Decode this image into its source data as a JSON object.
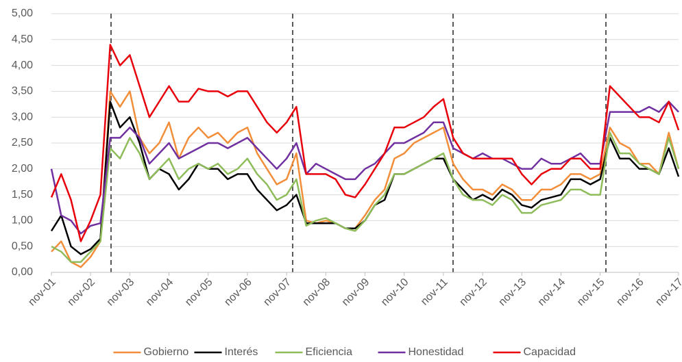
{
  "chart_data": {
    "type": "line",
    "categories": [
      "nov-01",
      null,
      null,
      null,
      "nov-02",
      null,
      null,
      null,
      "nov-03",
      null,
      null,
      null,
      "nov-04",
      null,
      null,
      null,
      "nov-05",
      null,
      null,
      null,
      "nov-06",
      null,
      null,
      null,
      "nov-07",
      null,
      null,
      null,
      "nov-08",
      null,
      null,
      null,
      "nov-09",
      null,
      null,
      null,
      "nov-10",
      null,
      null,
      null,
      "nov-11",
      null,
      null,
      null,
      "nov-12",
      null,
      null,
      null,
      "nov-13",
      null,
      null,
      null,
      "nov-14",
      null,
      null,
      null,
      "nov-15",
      null,
      null,
      null,
      "nov-16",
      null,
      null,
      null,
      "nov-17"
    ],
    "series": [
      {
        "name": "Gobierno",
        "color": "#f28e3a",
        "values": [
          0.4,
          0.6,
          0.2,
          0.1,
          0.3,
          0.6,
          3.5,
          3.2,
          3.5,
          2.6,
          2.3,
          2.5,
          2.9,
          2.2,
          2.6,
          2.8,
          2.6,
          2.7,
          2.5,
          2.7,
          2.8,
          2.3,
          2.0,
          1.7,
          1.8,
          2.3,
          1.0,
          0.95,
          1.0,
          0.95,
          0.85,
          0.85,
          1.1,
          1.4,
          1.6,
          2.2,
          2.3,
          2.5,
          2.6,
          2.7,
          2.8,
          2.1,
          1.8,
          1.6,
          1.6,
          1.5,
          1.7,
          1.6,
          1.4,
          1.4,
          1.6,
          1.6,
          1.7,
          1.9,
          1.9,
          1.8,
          1.9,
          2.8,
          2.5,
          2.4,
          2.1,
          2.1,
          1.9,
          2.7,
          2.0
        ]
      },
      {
        "name": "Interés",
        "color": "#000000",
        "values": [
          0.8,
          1.1,
          0.5,
          0.35,
          0.45,
          0.65,
          3.3,
          2.8,
          3.0,
          2.5,
          1.8,
          2.0,
          1.9,
          1.6,
          1.8,
          2.1,
          2.0,
          2.0,
          1.8,
          1.9,
          1.9,
          1.6,
          1.4,
          1.2,
          1.3,
          1.5,
          0.95,
          0.95,
          0.95,
          0.95,
          0.85,
          0.85,
          1.0,
          1.3,
          1.4,
          1.9,
          1.9,
          2.0,
          2.1,
          2.2,
          2.2,
          1.8,
          1.6,
          1.4,
          1.5,
          1.4,
          1.6,
          1.5,
          1.3,
          1.25,
          1.4,
          1.45,
          1.5,
          1.8,
          1.8,
          1.7,
          1.8,
          2.6,
          2.2,
          2.2,
          2.0,
          2.0,
          1.9,
          2.4,
          1.85
        ]
      },
      {
        "name": "Eficiencia",
        "color": "#8fbc5a",
        "values": [
          0.5,
          0.4,
          0.2,
          0.2,
          0.4,
          0.6,
          2.4,
          2.2,
          2.6,
          2.3,
          1.8,
          2.0,
          2.2,
          1.8,
          2.0,
          2.1,
          2.0,
          2.1,
          1.9,
          2.0,
          2.2,
          1.9,
          1.7,
          1.4,
          1.5,
          1.8,
          0.9,
          1.0,
          1.05,
          0.95,
          0.85,
          0.8,
          1.0,
          1.3,
          1.5,
          1.9,
          1.9,
          2.0,
          2.1,
          2.2,
          2.3,
          1.8,
          1.5,
          1.4,
          1.4,
          1.3,
          1.5,
          1.4,
          1.15,
          1.15,
          1.3,
          1.35,
          1.4,
          1.6,
          1.6,
          1.5,
          1.5,
          2.7,
          2.3,
          2.3,
          2.1,
          2.0,
          1.9,
          2.6,
          2.0
        ]
      },
      {
        "name": "Honestidad",
        "color": "#7030a0",
        "values": [
          2.0,
          1.1,
          1.0,
          0.75,
          0.9,
          0.95,
          2.6,
          2.6,
          2.8,
          2.6,
          2.1,
          2.3,
          2.5,
          2.2,
          2.3,
          2.4,
          2.5,
          2.5,
          2.4,
          2.5,
          2.6,
          2.4,
          2.2,
          2.0,
          2.2,
          2.5,
          1.9,
          2.1,
          2.0,
          1.9,
          1.8,
          1.8,
          2.0,
          2.1,
          2.3,
          2.5,
          2.5,
          2.6,
          2.7,
          2.9,
          2.9,
          2.4,
          2.3,
          2.2,
          2.3,
          2.2,
          2.2,
          2.1,
          2.0,
          2.0,
          2.2,
          2.1,
          2.1,
          2.2,
          2.3,
          2.1,
          2.1,
          3.1,
          3.1,
          3.1,
          3.1,
          3.2,
          3.1,
          3.3,
          3.1
        ]
      },
      {
        "name": "Capacidad",
        "color": "#e8000b",
        "values": [
          1.45,
          1.9,
          1.4,
          0.6,
          1.0,
          1.5,
          4.4,
          4.0,
          4.2,
          3.6,
          3.0,
          3.3,
          3.6,
          3.3,
          3.3,
          3.55,
          3.5,
          3.5,
          3.4,
          3.5,
          3.5,
          3.2,
          2.9,
          2.7,
          2.9,
          3.2,
          1.9,
          1.9,
          1.9,
          1.8,
          1.5,
          1.45,
          1.7,
          2.0,
          2.3,
          2.8,
          2.8,
          2.9,
          3.0,
          3.2,
          3.35,
          2.6,
          2.3,
          2.2,
          2.2,
          2.2,
          2.2,
          2.2,
          1.9,
          1.7,
          1.9,
          2.0,
          2.0,
          2.2,
          2.2,
          2.0,
          2.0,
          3.6,
          3.4,
          3.2,
          3.0,
          3.0,
          2.9,
          3.3,
          2.75
        ]
      }
    ],
    "ylim": [
      0,
      5
    ],
    "yticks": [
      {
        "value": 0,
        "label": "0,00"
      },
      {
        "value": 0.5,
        "label": "0,50"
      },
      {
        "value": 1,
        "label": "1,00"
      },
      {
        "value": 1.5,
        "label": "1,50"
      },
      {
        "value": 2,
        "label": "2,00"
      },
      {
        "value": 2.5,
        "label": "2,50"
      },
      {
        "value": 3,
        "label": "3,00"
      },
      {
        "value": 3.5,
        "label": "3,50"
      },
      {
        "value": 4,
        "label": "4,00"
      },
      {
        "value": 4.5,
        "label": "4,50"
      },
      {
        "value": 5,
        "label": "5,00"
      }
    ],
    "grid": true,
    "legend": "bottom"
  }
}
